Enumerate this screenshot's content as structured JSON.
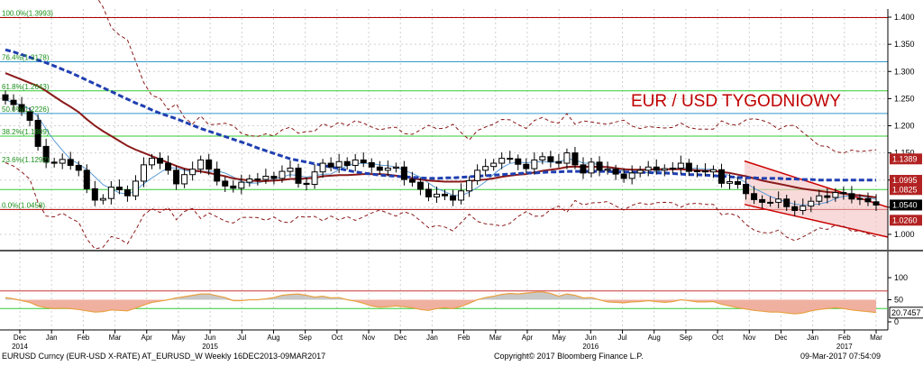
{
  "title": "EUR / USD TYGODNIOWY",
  "footer": {
    "left": "EURUSD Curncy (EUR-USD X-RATE) AT_EURUSD_W  Weekly 16DEC2013-09MAR2017",
    "center": "Copyright© 2017 Bloomberg Finance L.P.",
    "right": "09-Mar-2017 07:54:09"
  },
  "colors": {
    "title": "#c00000",
    "ma_slow": "#1f3fb0",
    "ma_mid": "#8b1a1a",
    "ma_fast": "#5b9bd5",
    "bands": "#8b1a1a",
    "channel_fill": "#f4c2c2",
    "channel_line": "#cc0000",
    "green_line": "#33cc33",
    "fib_text": "#1a8f1a",
    "tag_red": "#b22222",
    "tag_black": "#000000",
    "rsi_line": "#e8a040",
    "rsi_fill_pink": "#f0b0a0",
    "rsi_fill_gray": "#c8c8c8"
  },
  "chart_data": [
    {
      "type": "candlestick",
      "title": "EUR / USD TYGODNIOWY",
      "x_ticks": [
        "Dec 2014",
        "Jan",
        "Feb",
        "Mar",
        "Apr",
        "May",
        "Jun 2015",
        "Jul",
        "Aug",
        "Sep",
        "Oct",
        "Nov",
        "Dec",
        "Jan",
        "Feb",
        "Mar",
        "Apr",
        "May",
        "Jun 2016",
        "Jul",
        "Aug",
        "Sep",
        "Oct",
        "Nov",
        "Dec",
        "Jan",
        "Feb 2017",
        "Mar"
      ],
      "y_ticks": [
        1.4,
        1.35,
        1.3,
        1.25,
        1.2,
        1.15,
        1.1,
        1.05,
        1.0
      ],
      "ylim": [
        0.98,
        1.415
      ],
      "fib_levels": [
        {
          "label": "100.0%(1.3993)",
          "value": 1.3993
        },
        {
          "label": "76.4%(1.3178)",
          "value": 1.3178
        },
        {
          "label": "61.8%(1.2643)",
          "value": 1.2643
        },
        {
          "label": "50.0%(1.2226)",
          "value": 1.2226
        },
        {
          "label": "38.2%(1.1809)",
          "value": 1.1809
        },
        {
          "label": "23.6%(1.1292)",
          "value": 1.1292
        },
        {
          "label": "0.0%(1.0458)",
          "value": 1.0458
        }
      ],
      "horizontal_lines": [
        1.3993,
        1.3178,
        1.2643,
        1.2226,
        1.1809,
        1.0458,
        1.0825
      ],
      "price_tags": [
        {
          "label": "1.1389",
          "value": 1.1389,
          "style": "red"
        },
        {
          "label": "1.0995",
          "value": 1.0995,
          "style": "red"
        },
        {
          "label": "1.0825",
          "value": 1.0825,
          "style": "red"
        },
        {
          "label": "1.0540",
          "value": 1.054,
          "style": "black"
        },
        {
          "label": "1.0260",
          "value": 1.026,
          "style": "red"
        }
      ],
      "channel": {
        "upper": [
          [
            44,
            1.135
          ],
          [
            57,
            1.05
          ]
        ],
        "lower": [
          [
            44,
            1.055
          ],
          [
            57,
            0.995
          ]
        ]
      },
      "close": [
        1.247,
        1.239,
        1.226,
        1.21,
        1.162,
        1.133,
        1.131,
        1.138,
        1.127,
        1.118,
        1.084,
        1.063,
        1.066,
        1.087,
        1.082,
        1.071,
        1.098,
        1.128,
        1.14,
        1.131,
        1.118,
        1.093,
        1.11,
        1.12,
        1.137,
        1.12,
        1.098,
        1.089,
        1.085,
        1.096,
        1.102,
        1.101,
        1.107,
        1.103,
        1.116,
        1.122,
        1.094,
        1.092,
        1.115,
        1.131,
        1.124,
        1.134,
        1.127,
        1.137,
        1.132,
        1.124,
        1.118,
        1.122,
        1.124,
        1.101,
        1.096,
        1.083,
        1.069,
        1.074,
        1.071,
        1.063,
        1.08,
        1.099,
        1.118,
        1.125,
        1.131,
        1.14,
        1.139,
        1.129,
        1.121,
        1.137,
        1.143,
        1.134,
        1.131,
        1.15,
        1.128,
        1.113,
        1.133,
        1.118,
        1.12,
        1.111,
        1.103,
        1.113,
        1.118,
        1.124,
        1.118,
        1.121,
        1.122,
        1.131,
        1.116,
        1.117,
        1.115,
        1.119,
        1.094,
        1.097,
        1.092,
        1.075,
        1.064,
        1.059,
        1.059,
        1.065,
        1.051,
        1.044,
        1.052,
        1.061,
        1.071,
        1.068,
        1.077,
        1.075,
        1.065,
        1.066,
        1.06,
        1.054
      ],
      "ma_slow": [
        1.34,
        1.336,
        1.331,
        1.326,
        1.321,
        1.316,
        1.31,
        1.304,
        1.298,
        1.291,
        1.284,
        1.277,
        1.27,
        1.263,
        1.256,
        1.249,
        1.242,
        1.236,
        1.229,
        1.223,
        1.218,
        1.213,
        1.207,
        1.201,
        1.195,
        1.19,
        1.185,
        1.18,
        1.175,
        1.17,
        1.165,
        1.159,
        1.154,
        1.149,
        1.144,
        1.139,
        1.136,
        1.133,
        1.13,
        1.127,
        1.124,
        1.121,
        1.118,
        1.115,
        1.113,
        1.111,
        1.109,
        1.108,
        1.107,
        1.106,
        1.105,
        1.104,
        1.103,
        1.103,
        1.104,
        1.104,
        1.105,
        1.106,
        1.107,
        1.108,
        1.109,
        1.11,
        1.111,
        1.112,
        1.113,
        1.113,
        1.114,
        1.115,
        1.115,
        1.116,
        1.116,
        1.116,
        1.116,
        1.116,
        1.116,
        1.115,
        1.115,
        1.115,
        1.114,
        1.114,
        1.113,
        1.113,
        1.112,
        1.111,
        1.11,
        1.11,
        1.109,
        1.108,
        1.107,
        1.106,
        1.105,
        1.104,
        1.104,
        1.103,
        1.103,
        1.103,
        1.102,
        1.102,
        1.101,
        1.101,
        1.1,
        1.1,
        1.1,
        1.1,
        1.1,
        1.1,
        1.1,
        1.1
      ],
      "ma_mid": [
        1.297,
        1.291,
        1.285,
        1.279,
        1.273,
        1.264,
        1.254,
        1.244,
        1.235,
        1.225,
        1.212,
        1.2,
        1.19,
        1.181,
        1.172,
        1.163,
        1.156,
        1.15,
        1.144,
        1.138,
        1.132,
        1.126,
        1.121,
        1.118,
        1.116,
        1.113,
        1.11,
        1.107,
        1.103,
        1.101,
        1.099,
        1.098,
        1.098,
        1.099,
        1.1,
        1.102,
        1.102,
        1.103,
        1.104,
        1.107,
        1.108,
        1.109,
        1.109,
        1.11,
        1.111,
        1.111,
        1.111,
        1.11,
        1.108,
        1.106,
        1.103,
        1.101,
        1.099,
        1.098,
        1.097,
        1.097,
        1.097,
        1.098,
        1.1,
        1.101,
        1.103,
        1.106,
        1.108,
        1.11,
        1.111,
        1.114,
        1.117,
        1.119,
        1.121,
        1.124,
        1.125,
        1.124,
        1.125,
        1.124,
        1.124,
        1.122,
        1.12,
        1.119,
        1.119,
        1.119,
        1.12,
        1.12,
        1.12,
        1.12,
        1.119,
        1.118,
        1.117,
        1.117,
        1.115,
        1.113,
        1.11,
        1.107,
        1.103,
        1.099,
        1.096,
        1.093,
        1.09,
        1.087,
        1.084,
        1.082,
        1.08,
        1.078,
        1.077,
        1.075,
        1.073,
        1.072,
        1.07,
        1.068
      ],
      "rsi": {
        "y_ticks": [
          100,
          50,
          0
        ],
        "levels": [
          70,
          30
        ],
        "last": 20.7457,
        "values": [
          55,
          52,
          48,
          44,
          36,
          32,
          30,
          31,
          30,
          28,
          25,
          22,
          23,
          27,
          26,
          25,
          31,
          38,
          44,
          47,
          50,
          54,
          57,
          60,
          63,
          63,
          59,
          55,
          48,
          48,
          50,
          50,
          52,
          55,
          60,
          62,
          63,
          60,
          56,
          58,
          54,
          55,
          50,
          47,
          42,
          36,
          33,
          34,
          36,
          34,
          32,
          28,
          26,
          30,
          32,
          30,
          35,
          42,
          50,
          55,
          58,
          62,
          64,
          63,
          65,
          67,
          68,
          64,
          58,
          63,
          60,
          54,
          55,
          50,
          45,
          44,
          43,
          45,
          46,
          48,
          46,
          44,
          46,
          50,
          48,
          45,
          45,
          46,
          40,
          36,
          32,
          29,
          26,
          24,
          22,
          22,
          20,
          18,
          20,
          25,
          28,
          30,
          32,
          30,
          27,
          25,
          23,
          21
        ]
      }
    }
  ]
}
